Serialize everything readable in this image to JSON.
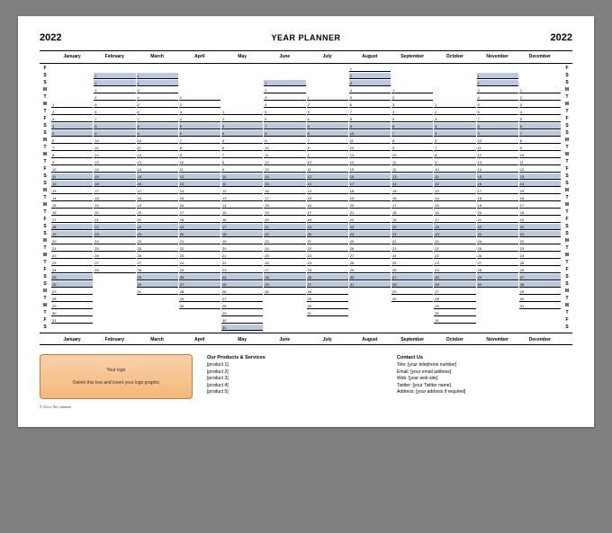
{
  "year": "2022",
  "title": "YEAR PLANNER",
  "months": [
    "January",
    "February",
    "March",
    "April",
    "May",
    "June",
    "July",
    "August",
    "September",
    "October",
    "November",
    "December"
  ],
  "day_labels": [
    "F",
    "S",
    "S",
    "M",
    "T",
    "W",
    "T",
    "F",
    "S",
    "S",
    "M",
    "T",
    "W",
    "T",
    "F",
    "S",
    "S",
    "M",
    "T",
    "W",
    "T",
    "F",
    "S",
    "S",
    "M",
    "T",
    "W",
    "T",
    "F",
    "S",
    "S",
    "M",
    "T",
    "W",
    "T",
    "F",
    "S"
  ],
  "month_start_offset": [
    5,
    1,
    1,
    4,
    6,
    2,
    4,
    0,
    3,
    5,
    1,
    3
  ],
  "month_days": [
    31,
    28,
    31,
    30,
    31,
    30,
    31,
    31,
    30,
    31,
    30,
    31
  ],
  "weekend_color": "#b8c9e0",
  "background_color": "#ffffff",
  "page_background": "#808080",
  "logo_box": {
    "line1": "Your logo",
    "line2": "Delete this box and insert your logo graphic"
  },
  "products": {
    "title": "Our Products & Services",
    "items": [
      "[product 1]",
      "[product 2]",
      "[product 3]",
      "[product 4]",
      "[product 5]"
    ]
  },
  "contact": {
    "title": "Contact Us",
    "items": [
      "Tele: [your telephone number]",
      "Email: [your email address]",
      "Web: [your web site]",
      "Twitter: [your Twitter name]",
      "Address: [your address if required]"
    ]
  },
  "copyright": "© 2014 Tim Lawson"
}
